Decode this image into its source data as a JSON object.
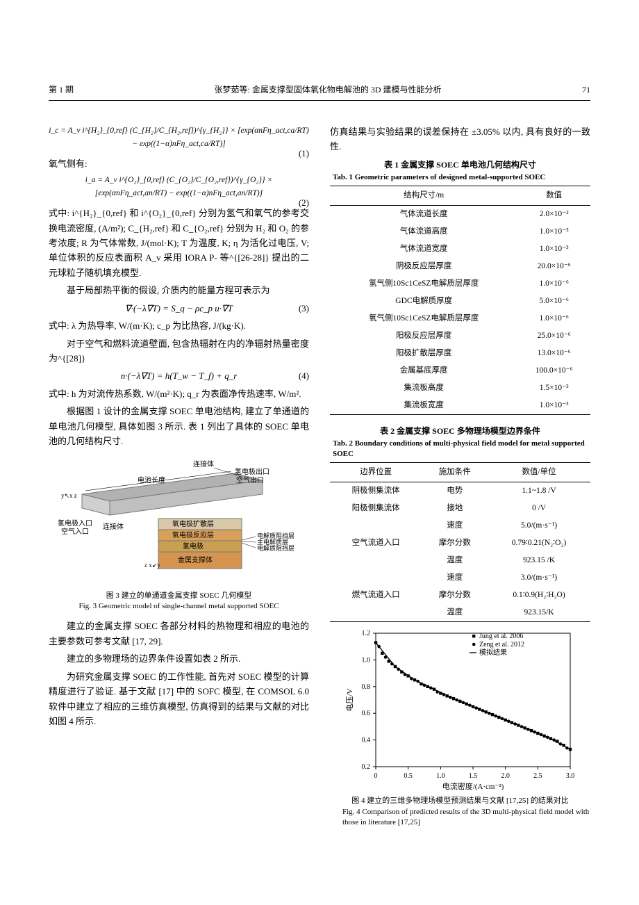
{
  "header": {
    "issue": "第 1 期",
    "title": "张梦茹等: 金属支撑型固体氧化物电解池的 3D 建模与性能分析",
    "page": "71"
  },
  "left_column": {
    "eq1": "i_c = A_v i^{H₂}_{0,ref} (C_{H₂}/C_{H₂,ref})^{γ_{H₂}} × [exp(αnFη_act,ca/RT) − exp((1−α)nFη_act,ca/RT)]",
    "eq1_num": "(1)",
    "line_oxygen": "氧气侧有:",
    "eq2": "i_a = A_v i^{O₂}_{0,ref} (C_{O₂}/C_{O₂,ref})^{γ_{O₂}} × [exp(αnFη_act,an/RT) − exp((1−α)nFη_act,an/RT)]",
    "eq2_num": "(2)",
    "para_after_eq2": "式中: i^{H₂}_{0,ref} 和 i^{O₂}_{0,ref} 分别为氢气和氧气的参考交换电流密度, (A/m²); C_{H₂,ref} 和 C_{O₂,ref} 分别为 H₂ 和 O₂ 的参考浓度; R 为气体常数, J/(mol·K); T 为温度, K; η 为活化过电压, V; 单位体积的反应表面积 A_v 采用 IORA P- 等^{[26-28]} 提出的二元球粒子随机填充模型.",
    "para_heat": "基于局部热平衡的假设, 介质内的能量方程可表示为",
    "eq3": "∇·(−λ∇T) = S_q − ρc_p u·∇T",
    "eq3_num": "(3)",
    "para_after_eq3": "式中: λ 为热导率, W/(m·K); c_p 为比热容, J/(kg·K).",
    "para_radiation": "对于空气和燃料流道壁面, 包含热辐射在内的净辐射热量密度为^{[28]}",
    "eq4": "n·(−λ∇T) = h(T_w − T_f) + q_r",
    "eq4_num": "(4)",
    "para_after_eq4": "式中: h 为对流传热系数, W/(m²·K); q_r 为表面净传热速率, W/m².",
    "para_geom": "根据图 1 设计的金属支撑 SOEC 单电池结构, 建立了单通道的单电池几何模型, 具体如图 3 所示. 表 1 列出了具体的 SOEC 单电池的几何结构尺寸.",
    "fig3": {
      "labels": {
        "length": "电池长度",
        "connector": "连接体",
        "h2_out": "氢电极出口",
        "air_out": "空气出口",
        "h2_in": "氢电极入口",
        "air_in": "空气入口",
        "o2_diff": "氧电极扩散层",
        "o2_react": "氧电极反应层",
        "h2_electrode": "氢电极",
        "metal_support": "金属支撑体",
        "electrolyte_block": "电解质阻挡层",
        "main_electrolyte": "主电解质层",
        "electrolyte_block2": "电解质阻挡层",
        "axes1": "y↖x\n  z",
        "axes2": "z\nx↙y"
      },
      "colors": {
        "connector": "#b2b2b2",
        "o2_diff": "#d8c8a8",
        "o2_react": "#d9a05b",
        "h2_electrode": "#c8a050",
        "metal_support": "#d59550",
        "thin_line": "#555555"
      },
      "caption_cn": "图 3  建立的单通道金属支撑 SOEC 几何模型",
      "caption_en": "Fig. 3  Geometric model of single-channel metal supported SOEC"
    },
    "para_materials": "建立的金属支撑 SOEC 各部分材料的热物理和相应的电池的主要参数可参考文献 [17, 29].",
    "para_bc": "建立的多物理场的边界条件设置如表 2 所示.",
    "para_validation": "为研究金属支撑 SOEC 的工作性能, 首先对 SOEC 模型的计算精度进行了验证. 基于文献 [17] 中的 SOFC 模型, 在 COMSOL 6.0 软件中建立了相应的三维仿真模型, 仿真得到的结果与文献的对比如图 4 所示."
  },
  "right_column": {
    "para_top": "仿真结果与实验结果的误差保持在 ±3.05% 以内, 具有良好的一致性.",
    "table1": {
      "caption_cn": "表 1  金属支撑 SOEC 单电池几何结构尺寸",
      "caption_en": "Tab. 1  Geometric parameters of designed metal-supported SOEC",
      "headers": [
        "结构尺寸/m",
        "数值"
      ],
      "rows": [
        [
          "气体流道长度",
          "2.0×10⁻²"
        ],
        [
          "气体流道高度",
          "1.0×10⁻³"
        ],
        [
          "气体流道宽度",
          "1.0×10⁻³"
        ],
        [
          "阴极反应层厚度",
          "20.0×10⁻⁶"
        ],
        [
          "氢气侧10Sc1CeSZ电解质层厚度",
          "1.0×10⁻⁶"
        ],
        [
          "GDC电解质厚度",
          "5.0×10⁻⁶"
        ],
        [
          "氧气侧10Sc1CeSZ电解质层厚度",
          "1.0×10⁻⁶"
        ],
        [
          "阳极反应层厚度",
          "25.0×10⁻⁶"
        ],
        [
          "阳极扩散层厚度",
          "13.0×10⁻⁶"
        ],
        [
          "金属基底厚度",
          "100.0×10⁻⁶"
        ],
        [
          "集流板高度",
          "1.5×10⁻³"
        ],
        [
          "集流板宽度",
          "1.0×10⁻³"
        ]
      ]
    },
    "table2": {
      "caption_cn": "表 2  金属支撑 SOEC 多物理场模型边界条件",
      "caption_en": "Tab. 2  Boundary conditions of multi-physical field model for metal supported SOEC",
      "headers": [
        "边界位置",
        "施加条件",
        "数值/单位"
      ],
      "rows": [
        [
          "阴极侧集流体",
          "电势",
          "1.1~1.8 /V"
        ],
        [
          "阳极侧集流体",
          "接地",
          "0 /V"
        ],
        [
          "",
          "速度",
          "5.0/(m·s⁻¹)"
        ],
        [
          "空气流道入口",
          "摩尔分数",
          "0.79∶0.21(N₂∶O₂)"
        ],
        [
          "",
          "温度",
          "923.15 /K"
        ],
        [
          "",
          "速度",
          "3.0/(m·s⁻¹)"
        ],
        [
          "燃气流道入口",
          "摩尔分数",
          "0.1∶0.9(H₂∶H₂O)"
        ],
        [
          "",
          "温度",
          "923.15/K"
        ]
      ]
    },
    "fig4": {
      "type": "scatter+line",
      "xlim": [
        0,
        3.0
      ],
      "ylim": [
        0.2,
        1.2
      ],
      "xticks": [
        0,
        0.5,
        1.0,
        1.5,
        2.0,
        2.5,
        3.0
      ],
      "yticks": [
        0.2,
        0.4,
        0.6,
        0.8,
        1.0,
        1.2
      ],
      "xlabel": "电流密度/(A·cm⁻²)",
      "ylabel": "电压/V",
      "legend": [
        {
          "label": "Jung et al. 2006",
          "marker": "square",
          "color": "#000000"
        },
        {
          "label": "Zeng et al. 2012",
          "marker": "circle",
          "color": "#000000"
        },
        {
          "label": "模拟结果",
          "marker": "line",
          "color": "#000000"
        }
      ],
      "series_jung": [
        [
          0.0,
          1.13
        ],
        [
          0.1,
          1.05
        ],
        [
          0.2,
          0.99
        ],
        [
          0.3,
          0.95
        ],
        [
          0.4,
          0.91
        ],
        [
          0.5,
          0.88
        ],
        [
          0.6,
          0.85
        ],
        [
          0.7,
          0.82
        ],
        [
          0.8,
          0.8
        ],
        [
          0.9,
          0.78
        ],
        [
          1.0,
          0.75
        ],
        [
          1.1,
          0.73
        ],
        [
          1.2,
          0.71
        ],
        [
          1.3,
          0.69
        ],
        [
          1.4,
          0.67
        ],
        [
          1.5,
          0.65
        ],
        [
          1.6,
          0.63
        ],
        [
          1.7,
          0.61
        ],
        [
          1.8,
          0.59
        ],
        [
          1.9,
          0.57
        ],
        [
          2.0,
          0.55
        ],
        [
          2.1,
          0.53
        ],
        [
          2.2,
          0.51
        ],
        [
          2.3,
          0.49
        ],
        [
          2.4,
          0.47
        ],
        [
          2.5,
          0.45
        ],
        [
          2.6,
          0.43
        ],
        [
          2.7,
          0.41
        ],
        [
          2.8,
          0.39
        ],
        [
          2.9,
          0.36
        ],
        [
          3.0,
          0.33
        ]
      ],
      "series_zeng": [
        [
          0.05,
          1.1
        ],
        [
          0.15,
          1.02
        ],
        [
          0.25,
          0.97
        ],
        [
          0.35,
          0.93
        ],
        [
          0.45,
          0.89
        ],
        [
          0.55,
          0.86
        ],
        [
          0.65,
          0.84
        ],
        [
          0.75,
          0.81
        ],
        [
          0.85,
          0.79
        ],
        [
          0.95,
          0.76
        ],
        [
          1.05,
          0.74
        ],
        [
          1.15,
          0.72
        ],
        [
          1.25,
          0.7
        ],
        [
          1.35,
          0.68
        ],
        [
          1.45,
          0.66
        ],
        [
          1.55,
          0.64
        ],
        [
          1.65,
          0.62
        ],
        [
          1.75,
          0.6
        ],
        [
          1.85,
          0.58
        ],
        [
          1.95,
          0.56
        ],
        [
          2.05,
          0.54
        ],
        [
          2.15,
          0.52
        ],
        [
          2.25,
          0.5
        ],
        [
          2.35,
          0.48
        ],
        [
          2.45,
          0.46
        ],
        [
          2.55,
          0.44
        ],
        [
          2.65,
          0.42
        ],
        [
          2.75,
          0.4
        ],
        [
          2.85,
          0.37
        ],
        [
          2.95,
          0.34
        ]
      ],
      "series_sim": [
        [
          0.0,
          1.13
        ],
        [
          0.3,
          0.95
        ],
        [
          0.6,
          0.85
        ],
        [
          0.9,
          0.78
        ],
        [
          1.2,
          0.71
        ],
        [
          1.5,
          0.65
        ],
        [
          1.8,
          0.59
        ],
        [
          2.1,
          0.53
        ],
        [
          2.4,
          0.47
        ],
        [
          2.7,
          0.41
        ],
        [
          3.0,
          0.33
        ]
      ],
      "background_color": "#ffffff",
      "axis_color": "#000000",
      "caption_cn": "图 4  建立的三维多物理场模型预测结果与文献 [17,25] 的结果对比",
      "caption_en": "Fig. 4  Comparison of predicted results of the 3D multi-physical field model with those in literature [17,25]"
    }
  }
}
